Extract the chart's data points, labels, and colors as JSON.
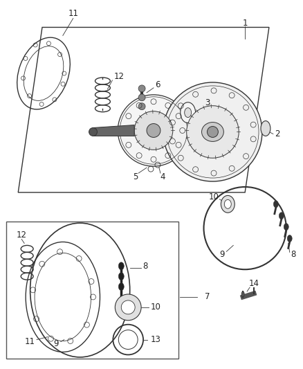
{
  "bg_color": "#ffffff",
  "line_color": "#333333",
  "label_color": "#222222",
  "fig_width": 4.38,
  "fig_height": 5.33,
  "dpi": 100
}
